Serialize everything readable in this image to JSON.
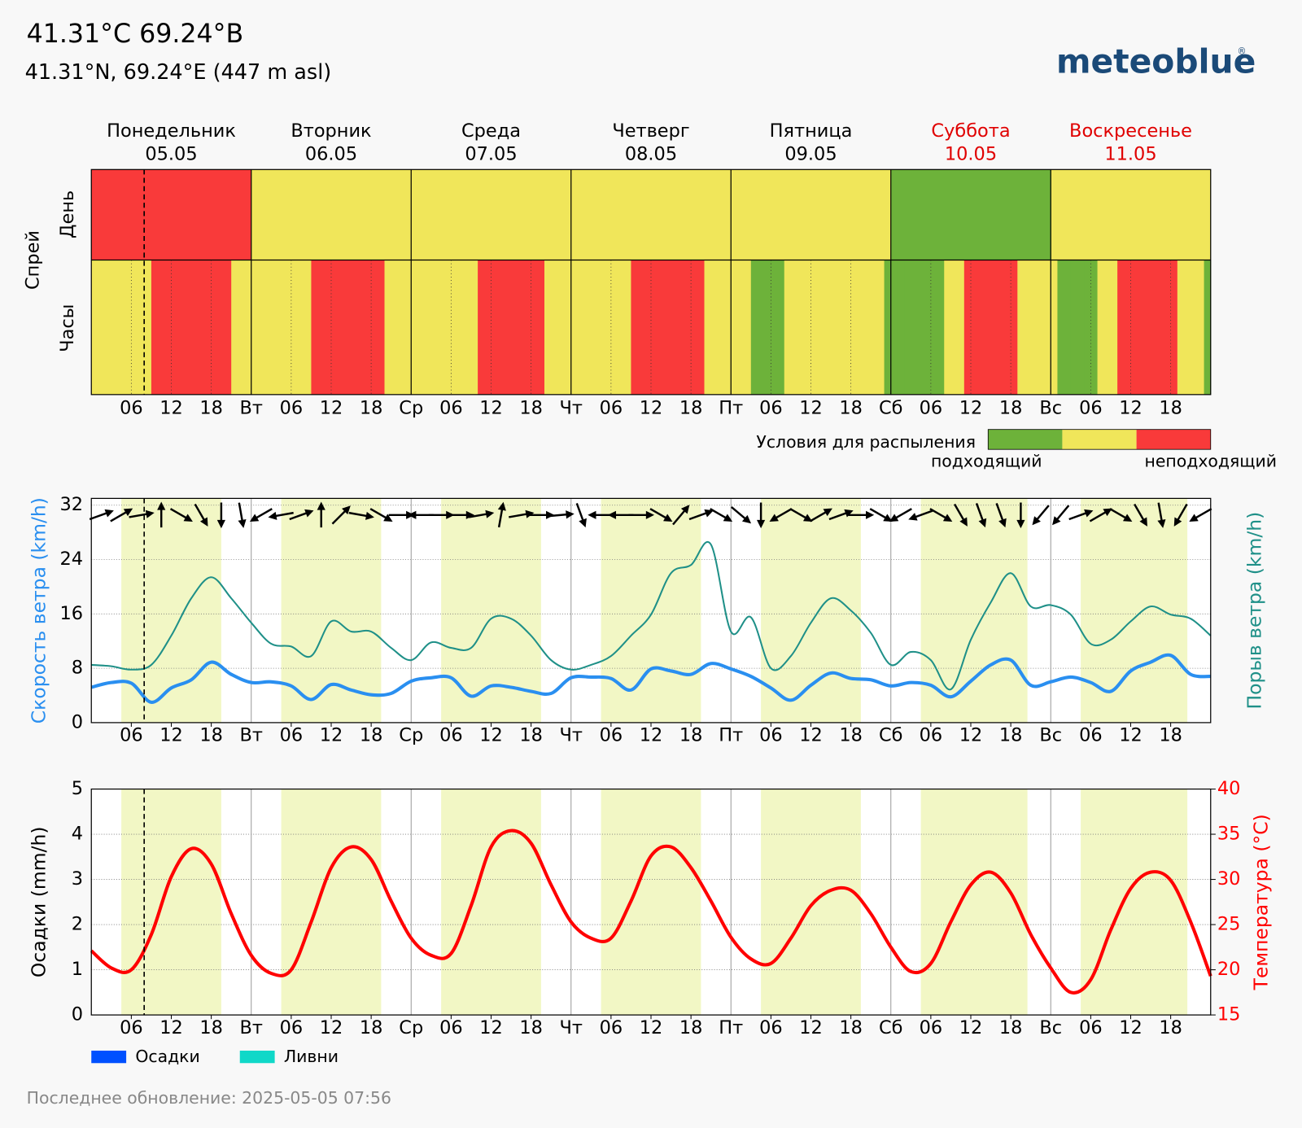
{
  "header": {
    "title": "41.31°C 69.24°B",
    "subtitle": "41.31°N, 69.24°E (447 m asl)",
    "logo": "meteoblue",
    "logo_mark": "®"
  },
  "footer": "Последнее обновление: 2025-05-05 07:56",
  "current_time": 7.93,
  "daylight": [
    [
      4.5,
      19.5
    ],
    [
      28.5,
      43.5
    ],
    [
      52.5,
      67.5
    ],
    [
      76.5,
      91.5
    ],
    [
      100.5,
      115.5
    ],
    [
      124.5,
      140.5
    ],
    [
      148.5,
      164.5
    ]
  ],
  "chart_data": [
    {
      "type": "heatmap",
      "ylabel": "Спрей",
      "row_labels": [
        "День",
        "Часы"
      ],
      "days": [
        {
          "name": "Понедельник",
          "date": "05.05",
          "color": "#000000"
        },
        {
          "name": "Вторник",
          "date": "06.05",
          "color": "#000000"
        },
        {
          "name": "Среда",
          "date": "07.05",
          "color": "#000000"
        },
        {
          "name": "Четверг",
          "date": "08.05",
          "color": "#000000"
        },
        {
          "name": "Пятница",
          "date": "09.05",
          "color": "#000000"
        },
        {
          "name": "Суббота",
          "date": "10.05",
          "color": "#e00000"
        },
        {
          "name": "Воскресенье",
          "date": "11.05",
          "color": "#e00000"
        }
      ],
      "day_values": [
        2,
        1,
        1,
        1,
        1,
        0,
        1
      ],
      "hour_values": [
        1,
        1,
        1,
        1,
        1,
        1,
        1,
        1,
        1,
        2,
        2,
        2,
        2,
        2,
        2,
        2,
        2,
        2,
        2,
        2,
        2,
        1,
        1,
        1,
        1,
        1,
        1,
        1,
        1,
        1,
        1,
        1,
        1,
        2,
        2,
        2,
        2,
        2,
        2,
        2,
        2,
        2,
        2,
        2,
        1,
        1,
        1,
        1,
        1,
        1,
        1,
        1,
        1,
        1,
        1,
        1,
        1,
        1,
        2,
        2,
        2,
        2,
        2,
        2,
        2,
        2,
        2,
        2,
        1,
        1,
        1,
        1,
        1,
        1,
        1,
        1,
        1,
        1,
        1,
        1,
        1,
        2,
        2,
        2,
        2,
        2,
        2,
        2,
        2,
        2,
        2,
        2,
        1,
        1,
        1,
        1,
        1,
        1,
        1,
        0,
        0,
        0,
        0,
        0,
        1,
        1,
        1,
        1,
        1,
        1,
        1,
        1,
        1,
        1,
        1,
        1,
        1,
        1,
        1,
        0,
        0,
        0,
        0,
        0,
        0,
        0,
        0,
        0,
        1,
        1,
        1,
        2,
        2,
        2,
        2,
        2,
        2,
        2,
        2,
        1,
        1,
        1,
        1,
        1,
        1,
        0,
        0,
        0,
        0,
        0,
        0,
        1,
        1,
        1,
        2,
        2,
        2,
        2,
        2,
        2,
        2,
        2,
        2,
        1,
        1,
        1,
        1,
        0
      ],
      "colors": [
        "#6db23a",
        "#f0e65a",
        "#f93a3a"
      ],
      "legend": {
        "title": "Условия для распыления",
        "labels": [
          "подходящий",
          "неподходящий"
        ]
      },
      "xlim": [
        0,
        168
      ],
      "xticks": [
        {
          "value": 6,
          "label": "06"
        },
        12,
        18,
        {
          "value": 24,
          "label": "Вт"
        },
        {
          "value": 30,
          "label": "06"
        },
        {
          "value": 36,
          "label": "12"
        },
        {
          "value": 42,
          "label": "18"
        },
        {
          "value": 48,
          "label": "Ср"
        },
        {
          "value": 54,
          "label": "06"
        },
        {
          "value": 60,
          "label": "12"
        },
        {
          "value": 66,
          "label": "18"
        },
        {
          "value": 72,
          "label": "Чт"
        },
        {
          "value": 78,
          "label": "06"
        },
        {
          "value": 84,
          "label": "12"
        },
        {
          "value": 90,
          "label": "18"
        },
        {
          "value": 96,
          "label": "Пт"
        },
        {
          "value": 102,
          "label": "06"
        },
        {
          "value": 108,
          "label": "12"
        },
        {
          "value": 114,
          "label": "18"
        },
        {
          "value": 120,
          "label": "Сб"
        },
        {
          "value": 126,
          "label": "06"
        },
        {
          "value": 132,
          "label": "12"
        },
        {
          "value": 138,
          "label": "18"
        },
        {
          "value": 144,
          "label": "Вс"
        },
        {
          "value": 150,
          "label": "06"
        },
        {
          "value": 156,
          "label": "12"
        },
        {
          "value": 162,
          "label": "18"
        }
      ]
    },
    {
      "type": "line",
      "ylabel": "Скорость ветра (km/h)",
      "ylabel_color": "#2a8ff0",
      "y2label": "Порыв ветра (km/h)",
      "y2label_color": "#1f9088",
      "x": [
        0,
        3,
        6,
        9,
        12,
        15,
        18,
        21,
        24,
        27,
        30,
        33,
        36,
        39,
        42,
        45,
        48,
        51,
        54,
        57,
        60,
        63,
        66,
        69,
        72,
        75,
        78,
        81,
        84,
        87,
        90,
        93,
        96,
        99,
        102,
        105,
        108,
        111,
        114,
        117,
        120,
        123,
        126,
        129,
        132,
        135,
        138,
        141,
        144,
        147,
        150,
        153,
        156,
        159,
        162,
        165,
        168
      ],
      "series": [
        {
          "color": "#2a8ff0",
          "values": [
            5.2,
            5.9,
            5.8,
            3.0,
            5.1,
            6.3,
            8.9,
            7.1,
            5.9,
            6.0,
            5.4,
            3.4,
            5.6,
            4.8,
            4.1,
            4.3,
            6.1,
            6.6,
            6.6,
            3.9,
            5.4,
            5.2,
            4.6,
            4.3,
            6.6,
            6.7,
            6.5,
            4.8,
            7.9,
            7.6,
            7.1,
            8.7,
            7.9,
            6.8,
            5.1,
            3.3,
            5.5,
            7.3,
            6.5,
            6.3,
            5.4,
            5.9,
            5.5,
            3.8,
            6.1,
            8.5,
            9.2,
            5.5,
            6.0,
            6.7,
            5.9,
            4.6,
            7.6,
            8.9,
            9.9,
            7.1,
            6.8
          ]
        },
        {
          "color": "#1f9088",
          "values": [
            8.5,
            8.3,
            7.8,
            8.5,
            12.8,
            18.3,
            21.4,
            18.3,
            14.7,
            11.6,
            11.2,
            9.8,
            14.9,
            13.4,
            13.4,
            11.0,
            9.2,
            11.8,
            11.0,
            11.0,
            15.3,
            15.3,
            12.8,
            9.2,
            7.8,
            8.5,
            9.8,
            12.8,
            15.9,
            22.0,
            23.2,
            26.2,
            13.4,
            15.5,
            8.0,
            9.8,
            14.7,
            18.3,
            16.5,
            13.2,
            8.5,
            10.4,
            9.2,
            4.9,
            12.2,
            17.7,
            22.0,
            17.1,
            17.3,
            15.9,
            11.6,
            12.2,
            14.9,
            17.1,
            15.9,
            15.3,
            12.8
          ]
        }
      ],
      "wind_direction": {
        "x": [
          1.5,
          4.5,
          7.5,
          10.5,
          13.5,
          16.5,
          19.5,
          22.5,
          25.5,
          28.5,
          31.5,
          34.5,
          37.5,
          40.5,
          43.5,
          46.5,
          49.5,
          52.5,
          55.5,
          58.5,
          61.5,
          64.5,
          67.5,
          70.5,
          73.5,
          76.5,
          79.5,
          82.5,
          85.5,
          88.5,
          91.5,
          94.5,
          97.5,
          100.5,
          103.5,
          106.5,
          109.5,
          112.5,
          115.5,
          118.5,
          121.5,
          124.5,
          127.5,
          130.5,
          133.5,
          136.5,
          139.5,
          142.5,
          145.5,
          148.5,
          151.5,
          154.5,
          157.5,
          160.5,
          163.5,
          166.5
        ],
        "values": [
          250,
          240,
          260,
          180,
          300,
          330,
          0,
          350,
          60,
          80,
          250,
          180,
          225,
          280,
          300,
          270,
          90,
          270,
          270,
          260,
          190,
          260,
          270,
          265,
          340,
          90,
          90,
          270,
          300,
          220,
          250,
          300,
          310,
          0,
          60,
          300,
          240,
          250,
          270,
          300,
          60,
          70,
          300,
          330,
          340,
          340,
          0,
          40,
          40,
          250,
          240,
          300,
          330,
          350,
          30,
          60
        ]
      },
      "xlim": [
        0,
        168
      ],
      "xticks": [
        {
          "value": 6,
          "label": "06"
        },
        12,
        18,
        {
          "value": 24,
          "label": "Вт"
        },
        {
          "value": 30,
          "label": "06"
        },
        {
          "value": 36,
          "label": "12"
        },
        {
          "value": 42,
          "label": "18"
        },
        {
          "value": 48,
          "label": "Ср"
        },
        {
          "value": 54,
          "label": "06"
        },
        {
          "value": 60,
          "label": "12"
        },
        {
          "value": 66,
          "label": "18"
        },
        {
          "value": 72,
          "label": "Чт"
        },
        {
          "value": 78,
          "label": "06"
        },
        {
          "value": 84,
          "label": "12"
        },
        {
          "value": 90,
          "label": "18"
        },
        {
          "value": 96,
          "label": "Пт"
        },
        {
          "value": 102,
          "label": "06"
        },
        {
          "value": 108,
          "label": "12"
        },
        {
          "value": 114,
          "label": "18"
        },
        {
          "value": 120,
          "label": "Сб"
        },
        {
          "value": 126,
          "label": "06"
        },
        {
          "value": 132,
          "label": "12"
        },
        {
          "value": 138,
          "label": "18"
        },
        {
          "value": 144,
          "label": "Вс"
        },
        {
          "value": 150,
          "label": "06"
        },
        {
          "value": 156,
          "label": "12"
        },
        {
          "value": 162,
          "label": "18"
        }
      ],
      "ylim": [
        0,
        33
      ],
      "yticks": [
        0,
        8,
        16,
        24,
        32
      ],
      "grid": true
    },
    {
      "type": "line",
      "ylabel": "Осадки (mm/h)",
      "ylabel_color": "#000000",
      "y2label": "Температура (°C)",
      "y2label_color": "#ff0000",
      "x": [
        0,
        3,
        6,
        9,
        12,
        15,
        18,
        21,
        24,
        27,
        30,
        33,
        36,
        39,
        42,
        45,
        48,
        51,
        54,
        57,
        60,
        63,
        66,
        69,
        72,
        75,
        78,
        81,
        84,
        87,
        90,
        93,
        96,
        99,
        102,
        105,
        108,
        111,
        114,
        117,
        120,
        123,
        126,
        129,
        132,
        135,
        138,
        141,
        144,
        147,
        150,
        153,
        156,
        159,
        162,
        165,
        168
      ],
      "series": [
        {
          "name": "Осадки",
          "type": "bar",
          "color": "#0050ff",
          "values": [
            0,
            0,
            0,
            0,
            0,
            0,
            0,
            0,
            0,
            0,
            0,
            0,
            0,
            0,
            0,
            0,
            0,
            0,
            0,
            0,
            0,
            0,
            0,
            0,
            0,
            0,
            0,
            0,
            0,
            0,
            0,
            0,
            0,
            0,
            0,
            0,
            0,
            0,
            0,
            0,
            0,
            0,
            0,
            0,
            0,
            0,
            0,
            0,
            0,
            0,
            0,
            0,
            0,
            0,
            0,
            0,
            0
          ]
        },
        {
          "name": "Ливни",
          "type": "bar",
          "color": "#10d8c8",
          "values": [
            0,
            0,
            0,
            0,
            0,
            0,
            0,
            0,
            0,
            0,
            0,
            0,
            0,
            0,
            0,
            0,
            0,
            0,
            0,
            0,
            0,
            0,
            0,
            0,
            0,
            0,
            0,
            0,
            0,
            0,
            0,
            0,
            0,
            0,
            0,
            0,
            0,
            0,
            0,
            0,
            0,
            0,
            0,
            0,
            0,
            0,
            0,
            0,
            0,
            0,
            0,
            0,
            0,
            0,
            0,
            0,
            0
          ]
        },
        {
          "color": "#ff0000",
          "axis": "y2",
          "values": [
            22.1,
            20.2,
            20.0,
            23.9,
            30.3,
            33.4,
            31.7,
            26.2,
            21.6,
            19.6,
            20.0,
            25.3,
            31.3,
            33.6,
            32.2,
            27.6,
            23.5,
            21.6,
            21.8,
            27.1,
            33.6,
            35.4,
            34.0,
            29.4,
            25.3,
            23.5,
            23.5,
            27.6,
            32.6,
            33.6,
            31.3,
            27.6,
            23.6,
            21.2,
            20.7,
            23.5,
            27.1,
            28.8,
            28.8,
            26.2,
            22.5,
            19.8,
            20.7,
            25.3,
            29.4,
            30.8,
            28.5,
            23.9,
            20.2,
            17.5,
            18.9,
            24.4,
            29.0,
            30.8,
            29.9,
            25.3,
            19.3
          ]
        }
      ],
      "xlim": [
        0,
        168
      ],
      "xticks": [
        {
          "value": 6,
          "label": "06"
        },
        12,
        18,
        {
          "value": 24,
          "label": "Вт"
        },
        {
          "value": 30,
          "label": "06"
        },
        {
          "value": 36,
          "label": "12"
        },
        {
          "value": 42,
          "label": "18"
        },
        {
          "value": 48,
          "label": "Ср"
        },
        {
          "value": 54,
          "label": "06"
        },
        {
          "value": 60,
          "label": "12"
        },
        {
          "value": 66,
          "label": "18"
        },
        {
          "value": 72,
          "label": "Чт"
        },
        {
          "value": 78,
          "label": "06"
        },
        {
          "value": 84,
          "label": "12"
        },
        {
          "value": 90,
          "label": "18"
        },
        {
          "value": 96,
          "label": "Пт"
        },
        {
          "value": 102,
          "label": "06"
        },
        {
          "value": 108,
          "label": "12"
        },
        {
          "value": 114,
          "label": "18"
        },
        {
          "value": 120,
          "label": "Сб"
        },
        {
          "value": 126,
          "label": "06"
        },
        {
          "value": 132,
          "label": "12"
        },
        {
          "value": 138,
          "label": "18"
        },
        {
          "value": 144,
          "label": "Вс"
        },
        {
          "value": 150,
          "label": "06"
        },
        {
          "value": 156,
          "label": "12"
        },
        {
          "value": 162,
          "label": "18"
        }
      ],
      "ylim": [
        0,
        5
      ],
      "yticks": [
        0,
        1,
        2,
        3,
        4,
        5
      ],
      "y2lim": [
        15,
        40
      ],
      "y2ticks": [
        15,
        20,
        25,
        30,
        35,
        40
      ],
      "grid": true
    }
  ]
}
